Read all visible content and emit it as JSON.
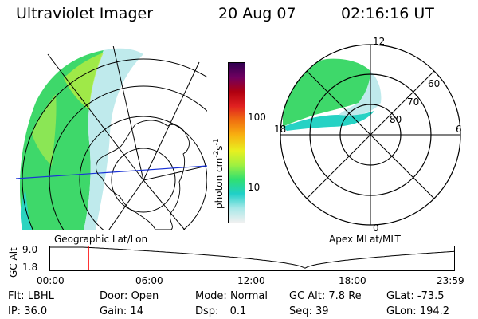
{
  "header": {
    "instrument": "Ultraviolet Imager",
    "date": "20 Aug 07",
    "time": "02:16:16 UT"
  },
  "geo_panel": {
    "label": "Geographic Lat/Lon"
  },
  "polar_panel": {
    "label": "Apex MLat/MLT",
    "mlt_labels": [
      "12",
      "6",
      "0",
      "18"
    ],
    "lat_labels": [
      "60",
      "70",
      "80"
    ]
  },
  "colorbar": {
    "unit_label": "photon cm-2s-1",
    "unit_main": "photon cm",
    "unit_exp": "-2",
    "unit_s": "s",
    "unit_s_exp": "-1",
    "ticks": [
      "100",
      "10"
    ],
    "scale": "log",
    "colors": [
      "#f0f0f0",
      "#a8e8e8",
      "#20d0c8",
      "#30e070",
      "#a0f040",
      "#e8f020",
      "#f8b010",
      "#f07010",
      "#e02020",
      "#b00010",
      "#700060",
      "#300050"
    ]
  },
  "altitude_plot": {
    "ylabel": "GC Alt",
    "yticks": [
      "9.0",
      "1.8"
    ],
    "xticks": [
      "00:00",
      "06:00",
      "12:00",
      "18:00",
      "23:59"
    ],
    "cursor_time_hours": 2.27,
    "line_color": "#000000",
    "cursor_color": "#ff0000"
  },
  "info": {
    "filter_label": "Flt:",
    "filter_value": "LBHL",
    "ip_label": "IP:",
    "ip_value": "36.0",
    "door_label": "Door:",
    "door_value": "Open",
    "gain_label": "Gain:",
    "gain_value": "14",
    "mode_label": "Mode:",
    "mode_value": "Normal",
    "dsp_label": "Dsp:",
    "dsp_value": "0.1",
    "gcalt_label": "GC Alt:",
    "gcalt_value": "7.8 Re",
    "seq_label": "Seq:",
    "seq_value": "39",
    "glat_label": "GLat:",
    "glat_value": "-73.5",
    "glon_label": "GLon:",
    "glon_value": "194.2"
  }
}
